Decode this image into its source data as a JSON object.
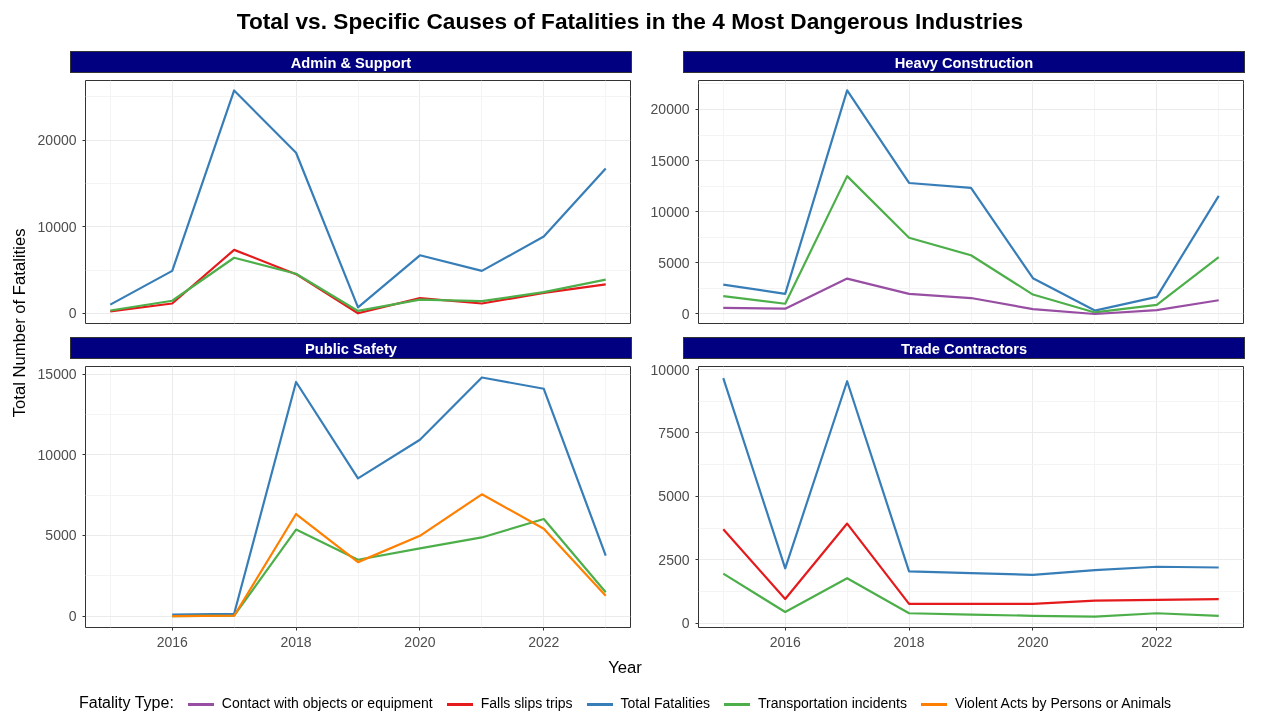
{
  "chart_data": [
    {
      "type": "line",
      "title": "Admin & Support",
      "annotations": [
        "Total vs. Specific Causes of Fatalities in the 4 Most Dangerous Industries"
      ],
      "ylabel": "Total Number of Fatalities",
      "legend": "bottom",
      "legend_title": "Fatality Type:",
      "x": [
        2015,
        2016,
        2017,
        2018,
        2019,
        2020,
        2021,
        2022,
        2023
      ],
      "xlim": [
        2014.6,
        2023.4
      ],
      "xticks": [
        2016,
        2018,
        2020,
        2022
      ],
      "ylim": [
        -1180,
        26900
      ],
      "yticks": [
        0,
        10000,
        20000
      ],
      "grid": true,
      "tick_labels": "y",
      "series": [
        {
          "name": "Total Fatalities",
          "color": "#377eb8",
          "values": [
            1000,
            4900,
            25750,
            18550,
            680,
            6700,
            4900,
            8870,
            16740
          ]
        },
        {
          "name": "Falls slips trips",
          "color": "#e41a1c",
          "values": [
            230,
            1130,
            7330,
            4520,
            0,
            1760,
            1130,
            2350,
            3350
          ]
        },
        {
          "name": "Transportation incidents",
          "color": "#4daf4a",
          "values": [
            320,
            1450,
            6420,
            4570,
            270,
            1580,
            1400,
            2440,
            3890
          ]
        }
      ]
    },
    {
      "type": "line",
      "title": "Heavy Construction",
      "x": [
        2015,
        2016,
        2017,
        2018,
        2019,
        2020,
        2021,
        2022,
        2023
      ],
      "xlim": [
        2014.6,
        2023.4
      ],
      "xticks": [
        2016,
        2018,
        2020,
        2022
      ],
      "ylim": [
        -930,
        22830
      ],
      "yticks": [
        0,
        5000,
        10000,
        15000,
        20000
      ],
      "grid": true,
      "tick_labels": "y",
      "series": [
        {
          "name": "Total Fatalities",
          "color": "#377eb8",
          "values": [
            2870,
            1970,
            21860,
            12810,
            12330,
            3500,
            335,
            1680,
            11550
          ]
        },
        {
          "name": "Transportation incidents",
          "color": "#4daf4a",
          "values": [
            1750,
            1000,
            13480,
            7450,
            5740,
            1900,
            150,
            890,
            5550
          ]
        },
        {
          "name": "Contact with objects or equipment",
          "color": "#984ea3",
          "values": [
            600,
            520,
            3460,
            1970,
            1560,
            480,
            0,
            370,
            1340
          ]
        }
      ]
    },
    {
      "type": "line",
      "title": "Public Safety",
      "xlabel": "Year",
      "x": [
        2016,
        2017,
        2018,
        2019,
        2020,
        2021,
        2022,
        2023
      ],
      "xlim": [
        2014.6,
        2023.4
      ],
      "xticks": [
        2016,
        2018,
        2020,
        2022
      ],
      "ylim": [
        -700,
        15470
      ],
      "yticks": [
        0,
        5000,
        10000,
        15000
      ],
      "grid": true,
      "series": [
        {
          "name": "Total Fatalities",
          "color": "#377eb8",
          "values": [
            100,
            150,
            14510,
            8540,
            10930,
            14790,
            14090,
            3760
          ]
        },
        {
          "name": "Transportation incidents",
          "color": "#4daf4a",
          "values": [
            0,
            30,
            5370,
            3500,
            4200,
            4880,
            6020,
            1480
          ]
        },
        {
          "name": "Violent Acts by Persons or Animals",
          "color": "#ff7f00",
          "values": [
            0,
            30,
            6330,
            3350,
            4980,
            7550,
            5420,
            1270
          ]
        }
      ]
    },
    {
      "type": "line",
      "title": "Trade Contractors",
      "x": [
        2015,
        2016,
        2017,
        2018,
        2019,
        2020,
        2021,
        2022,
        2023
      ],
      "xlim": [
        2014.6,
        2023.4
      ],
      "xticks": [
        2016,
        2018,
        2020,
        2022
      ],
      "ylim": [
        -160,
        10110
      ],
      "yticks": [
        0,
        2500,
        5000,
        7500,
        10000
      ],
      "grid": true,
      "series": [
        {
          "name": "Total Fatalities",
          "color": "#377eb8",
          "values": [
            9650,
            2170,
            9530,
            2050,
            1980,
            1910,
            2100,
            2230,
            2200
          ]
        },
        {
          "name": "Falls slips trips",
          "color": "#e41a1c",
          "values": [
            3710,
            960,
            3930,
            770,
            770,
            770,
            900,
            930,
            960
          ]
        },
        {
          "name": "Transportation incidents",
          "color": "#4daf4a",
          "values": [
            1960,
            450,
            1780,
            400,
            350,
            300,
            270,
            400,
            300
          ]
        }
      ]
    }
  ]
}
